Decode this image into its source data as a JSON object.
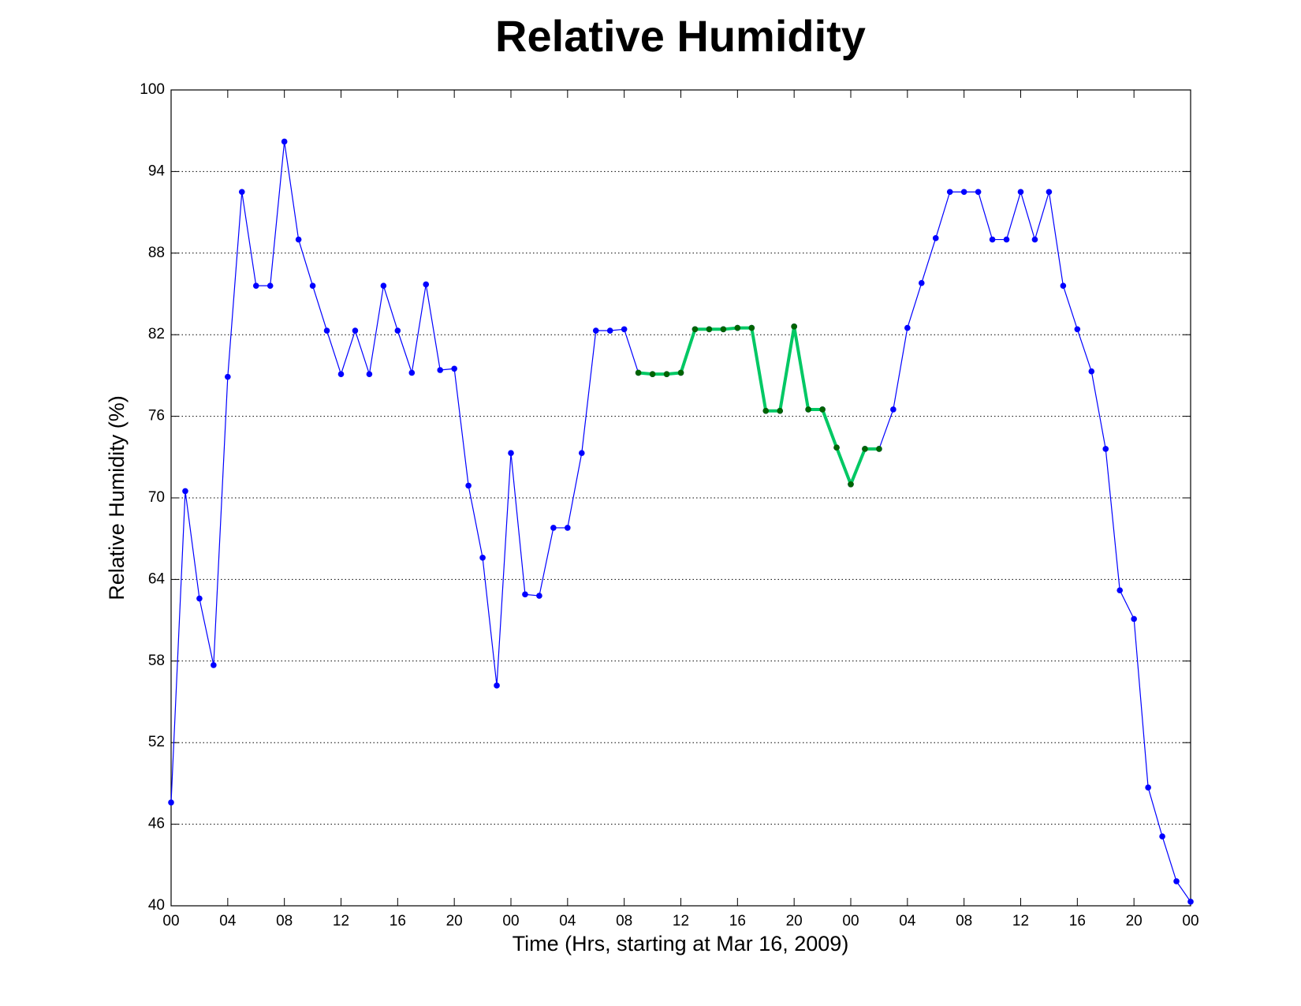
{
  "chart_data": {
    "type": "line",
    "title": "Relative Humidity",
    "xlabel": "Time (Hrs, starting at Mar 16, 2009)",
    "ylabel": "Relative Humidity (%)",
    "x": [
      0,
      1,
      2,
      3,
      4,
      5,
      6,
      7,
      8,
      9,
      10,
      11,
      12,
      13,
      14,
      15,
      16,
      17,
      18,
      19,
      20,
      21,
      22,
      23,
      24,
      25,
      26,
      27,
      28,
      29,
      30,
      31,
      32,
      33,
      34,
      35,
      36,
      37,
      38,
      39,
      40,
      41,
      42,
      43,
      44,
      45,
      46,
      47,
      48,
      49,
      50,
      51,
      52,
      53,
      54,
      55,
      56,
      57,
      58,
      59,
      60,
      61,
      62,
      63,
      64,
      65,
      66,
      67,
      68,
      69,
      70,
      71,
      72
    ],
    "series": [
      {
        "color": "#0000ff",
        "marker_color": "#0000ff",
        "line_width": 1.2,
        "values": [
          47.6,
          70.5,
          62.6,
          57.7,
          78.9,
          92.5,
          85.6,
          85.6,
          96.2,
          89.0,
          85.6,
          82.3,
          79.1,
          82.3,
          79.1,
          85.6,
          82.3,
          79.2,
          85.7,
          79.4,
          79.5,
          70.9,
          65.6,
          56.2,
          73.3,
          62.9,
          62.8,
          67.8,
          67.8,
          73.3,
          82.3,
          82.3,
          82.4,
          79.2,
          79.1,
          79.1,
          79.2,
          82.4,
          82.4,
          82.4,
          82.5,
          82.5,
          76.4,
          76.4,
          82.6,
          76.5,
          76.5,
          73.7,
          71.0,
          73.6,
          73.6,
          76.5,
          82.5,
          85.8,
          89.1,
          92.5,
          92.5,
          92.5,
          89.0,
          89.0,
          92.5,
          89.0,
          92.5,
          85.6,
          82.4,
          79.3,
          73.6,
          63.2,
          61.1,
          48.7,
          45.1,
          41.8,
          40.3
        ]
      },
      {
        "color": "#00c864",
        "marker_color": "#006400",
        "line_width": 4,
        "values": [
          null,
          null,
          null,
          null,
          null,
          null,
          null,
          null,
          null,
          null,
          null,
          null,
          null,
          null,
          null,
          null,
          null,
          null,
          null,
          null,
          null,
          null,
          null,
          null,
          null,
          null,
          null,
          null,
          null,
          null,
          null,
          null,
          null,
          79.2,
          79.1,
          79.1,
          79.2,
          82.4,
          82.4,
          82.4,
          82.5,
          82.5,
          76.4,
          76.4,
          82.6,
          76.5,
          76.5,
          73.7,
          71.0,
          73.6,
          73.6,
          null,
          null,
          null,
          null,
          null,
          null,
          null,
          null,
          null,
          null,
          null,
          null,
          null,
          null,
          null,
          null,
          null,
          null,
          null,
          null,
          null,
          null
        ]
      }
    ],
    "xlim": [
      0,
      72
    ],
    "ylim": [
      40,
      100
    ],
    "xticks": [
      {
        "value": 0,
        "label": "00"
      },
      {
        "value": 4,
        "label": "04"
      },
      {
        "value": 8,
        "label": "08"
      },
      {
        "value": 12,
        "label": "12"
      },
      {
        "value": 16,
        "label": "16"
      },
      {
        "value": 20,
        "label": "20"
      },
      {
        "value": 24,
        "label": "00"
      },
      {
        "value": 28,
        "label": "04"
      },
      {
        "value": 32,
        "label": "08"
      },
      {
        "value": 36,
        "label": "12"
      },
      {
        "value": 40,
        "label": "16"
      },
      {
        "value": 44,
        "label": "20"
      },
      {
        "value": 48,
        "label": "00"
      },
      {
        "value": 52,
        "label": "04"
      },
      {
        "value": 56,
        "label": "08"
      },
      {
        "value": 60,
        "label": "12"
      },
      {
        "value": 64,
        "label": "16"
      },
      {
        "value": 68,
        "label": "20"
      },
      {
        "value": 72,
        "label": "00"
      }
    ],
    "yticks": [
      40,
      46,
      52,
      58,
      64,
      70,
      76,
      82,
      88,
      94,
      100
    ],
    "grid": true
  }
}
